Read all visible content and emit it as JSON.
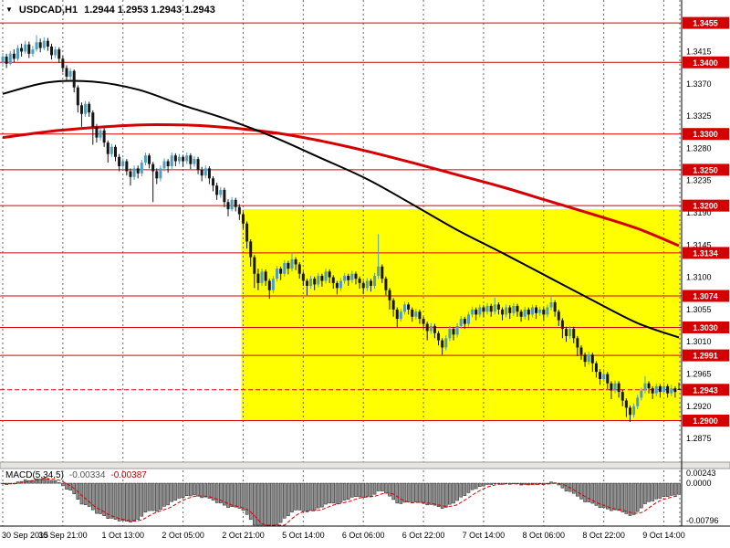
{
  "window": {
    "title_symbol": "USDCAD,H1",
    "title_quote": "1.2944 1.2953 1.2943 1.2943"
  },
  "colors": {
    "bull": "#4f9ebe",
    "bear": "#161616",
    "level": "#d40000",
    "ma_black": "#000000",
    "ma_red": "#d40000",
    "grid": "#666666",
    "macd_fill": "#8f8f8f",
    "macd_stroke": "#333333",
    "signal": "#d40000",
    "zone": "#ffff00",
    "badge_text": "#ffffff"
  },
  "chart_data": {
    "type": "candlestick",
    "symbol": "USDCAD",
    "timeframe": "H1",
    "x_labels": [
      "30 Sep 2015",
      "30 Sep 21:00",
      "1 Oct 13:00",
      "2 Oct 05:00",
      "2 Oct 21:00",
      "5 Oct 14:00",
      "6 Oct 06:00",
      "6 Oct 22:00",
      "7 Oct 14:00",
      "8 Oct 06:00",
      "8 Oct 22:00",
      "9 Oct 14:00"
    ],
    "candles_per_label": 16,
    "y_axis": {
      "ticks": [
        "1.3415",
        "1.3370",
        "1.3325",
        "1.3280",
        "1.3235",
        "1.3190",
        "1.3145",
        "1.3100",
        "1.3055",
        "1.3010",
        "1.2965",
        "1.2920",
        "1.2875"
      ],
      "ylim_top": 1.3487,
      "ylim_bottom": 1.2842
    },
    "levels": [
      1.3455,
      1.34,
      1.33,
      1.325,
      1.32,
      1.3134,
      1.3074,
      1.303,
      1.2991,
      1.29
    ],
    "current_price": 1.2943,
    "highlight_zone": {
      "price_top": 1.3195,
      "price_bottom": 1.29,
      "start_index": 64
    },
    "ma_black": [
      [
        0,
        1.3356
      ],
      [
        12,
        1.3372
      ],
      [
        24,
        1.3373
      ],
      [
        36,
        1.3362
      ],
      [
        48,
        1.334
      ],
      [
        60,
        1.332
      ],
      [
        72,
        1.3296
      ],
      [
        84,
        1.3268
      ],
      [
        97,
        1.3237
      ],
      [
        109,
        1.3202
      ],
      [
        121,
        1.3166
      ],
      [
        133,
        1.3134
      ],
      [
        145,
        1.3101
      ],
      [
        157,
        1.3068
      ],
      [
        169,
        1.3036
      ],
      [
        180,
        1.3016
      ]
    ],
    "ma_red": [
      [
        0,
        1.3295
      ],
      [
        15,
        1.3305
      ],
      [
        30,
        1.3311
      ],
      [
        41,
        1.3313
      ],
      [
        55,
        1.3311
      ],
      [
        72,
        1.3302
      ],
      [
        85,
        1.329
      ],
      [
        97,
        1.3276
      ],
      [
        109,
        1.326
      ],
      [
        121,
        1.3243
      ],
      [
        133,
        1.3226
      ],
      [
        145,
        1.3207
      ],
      [
        157,
        1.3188
      ],
      [
        169,
        1.3168
      ],
      [
        180,
        1.3144
      ]
    ],
    "indicator": {
      "label": "MACD(5,34,5)",
      "value_main": "-0.00334",
      "value_signal": "-0.00387",
      "params": {
        "fast": 5,
        "slow": 34,
        "signal": 5
      },
      "axis": {
        "top_label": "0.00243",
        "zero_label": "0.0000",
        "bottom_label": "-0.00796",
        "ymax": 0.0028,
        "ymin": -0.0085
      }
    },
    "candles": [
      [
        1.34,
        1.3413,
        1.3394,
        1.3408
      ],
      [
        1.3408,
        1.3412,
        1.3392,
        1.3398
      ],
      [
        1.3398,
        1.3416,
        1.3396,
        1.3412
      ],
      [
        1.3412,
        1.3418,
        1.34,
        1.3405
      ],
      [
        1.3405,
        1.3424,
        1.3402,
        1.342
      ],
      [
        1.342,
        1.3426,
        1.3408,
        1.3415
      ],
      [
        1.3415,
        1.343,
        1.3412,
        1.3425
      ],
      [
        1.3425,
        1.3429,
        1.3406,
        1.3412
      ],
      [
        1.3412,
        1.3423,
        1.3408,
        1.3418
      ],
      [
        1.3418,
        1.3438,
        1.3415,
        1.3428
      ],
      [
        1.3428,
        1.3433,
        1.3414,
        1.342
      ],
      [
        1.342,
        1.3435,
        1.3417,
        1.343
      ],
      [
        1.343,
        1.3434,
        1.3416,
        1.3422
      ],
      [
        1.3422,
        1.3426,
        1.3404,
        1.341
      ],
      [
        1.341,
        1.3422,
        1.3406,
        1.3418
      ],
      [
        1.3418,
        1.3421,
        1.3399,
        1.3405
      ],
      [
        1.3405,
        1.3409,
        1.3386,
        1.3392
      ],
      [
        1.3392,
        1.3396,
        1.3373,
        1.338
      ],
      [
        1.338,
        1.3392,
        1.3376,
        1.3388
      ],
      [
        1.3388,
        1.339,
        1.3358,
        1.3365
      ],
      [
        1.3365,
        1.3368,
        1.333,
        1.334
      ],
      [
        1.334,
        1.3344,
        1.331,
        1.3328
      ],
      [
        1.3328,
        1.3346,
        1.3324,
        1.3342
      ],
      [
        1.3342,
        1.3345,
        1.3324,
        1.333
      ],
      [
        1.333,
        1.3333,
        1.3285,
        1.331
      ],
      [
        1.331,
        1.3314,
        1.3288,
        1.3295
      ],
      [
        1.3295,
        1.3309,
        1.3291,
        1.3305
      ],
      [
        1.3305,
        1.3308,
        1.3282,
        1.3288
      ],
      [
        1.3288,
        1.3291,
        1.326,
        1.3272
      ],
      [
        1.3272,
        1.3286,
        1.3268,
        1.3282
      ],
      [
        1.3282,
        1.3285,
        1.3262,
        1.3268
      ],
      [
        1.3268,
        1.3272,
        1.3248,
        1.3255
      ],
      [
        1.3255,
        1.3266,
        1.325,
        1.3262
      ],
      [
        1.3262,
        1.3265,
        1.3242,
        1.3248
      ],
      [
        1.3248,
        1.3252,
        1.3228,
        1.324
      ],
      [
        1.324,
        1.3256,
        1.3236,
        1.3252
      ],
      [
        1.3252,
        1.3256,
        1.3238,
        1.3245
      ],
      [
        1.3245,
        1.3264,
        1.3241,
        1.326
      ],
      [
        1.326,
        1.3274,
        1.3256,
        1.327
      ],
      [
        1.327,
        1.3273,
        1.3252,
        1.3258
      ],
      [
        1.3258,
        1.3261,
        1.3205,
        1.3248
      ],
      [
        1.3248,
        1.3252,
        1.323,
        1.3238
      ],
      [
        1.3238,
        1.3256,
        1.3234,
        1.3252
      ],
      [
        1.3252,
        1.3266,
        1.3248,
        1.3262
      ],
      [
        1.3262,
        1.3265,
        1.3246,
        1.3255
      ],
      [
        1.3255,
        1.3274,
        1.3251,
        1.327
      ],
      [
        1.327,
        1.3273,
        1.3255,
        1.3262
      ],
      [
        1.3262,
        1.3272,
        1.3258,
        1.3268
      ],
      [
        1.3268,
        1.3271,
        1.3254,
        1.3262
      ],
      [
        1.3262,
        1.3274,
        1.3258,
        1.327
      ],
      [
        1.327,
        1.3273,
        1.3251,
        1.3258
      ],
      [
        1.3258,
        1.3269,
        1.3254,
        1.3265
      ],
      [
        1.3265,
        1.3268,
        1.3244,
        1.325
      ],
      [
        1.325,
        1.3254,
        1.3234,
        1.3242
      ],
      [
        1.3242,
        1.3256,
        1.3238,
        1.3252
      ],
      [
        1.3252,
        1.3255,
        1.323,
        1.3238
      ],
      [
        1.3238,
        1.3241,
        1.322,
        1.3228
      ],
      [
        1.3228,
        1.3232,
        1.3208,
        1.3215
      ],
      [
        1.3215,
        1.3226,
        1.3211,
        1.3222
      ],
      [
        1.3222,
        1.3225,
        1.3198,
        1.3205
      ],
      [
        1.3205,
        1.3209,
        1.3185,
        1.3195
      ],
      [
        1.3195,
        1.3212,
        1.3192,
        1.3208
      ],
      [
        1.3208,
        1.3211,
        1.3192,
        1.3198
      ],
      [
        1.3198,
        1.3202,
        1.318,
        1.3188
      ],
      [
        1.3188,
        1.3191,
        1.3168,
        1.3175
      ],
      [
        1.3175,
        1.3178,
        1.314,
        1.315
      ],
      [
        1.315,
        1.3153,
        1.3115,
        1.3128
      ],
      [
        1.3128,
        1.3131,
        1.3085,
        1.3105
      ],
      [
        1.3105,
        1.3112,
        1.3082,
        1.3092
      ],
      [
        1.3092,
        1.3112,
        1.3088,
        1.3108
      ],
      [
        1.3108,
        1.3111,
        1.3088,
        1.3095
      ],
      [
        1.3095,
        1.3098,
        1.307,
        1.3082
      ],
      [
        1.3082,
        1.3102,
        1.3078,
        1.3098
      ],
      [
        1.3098,
        1.3116,
        1.3094,
        1.3112
      ],
      [
        1.3112,
        1.3115,
        1.3096,
        1.3105
      ],
      [
        1.3105,
        1.3124,
        1.3101,
        1.312
      ],
      [
        1.312,
        1.3123,
        1.3104,
        1.3112
      ],
      [
        1.3112,
        1.3135,
        1.3108,
        1.3125
      ],
      [
        1.3125,
        1.3128,
        1.311,
        1.3118
      ],
      [
        1.3118,
        1.3121,
        1.3098,
        1.3105
      ],
      [
        1.3105,
        1.3108,
        1.3088,
        1.3095
      ],
      [
        1.3095,
        1.3098,
        1.3075,
        1.3088
      ],
      [
        1.3088,
        1.3102,
        1.3084,
        1.3098
      ],
      [
        1.3098,
        1.3101,
        1.3082,
        1.309
      ],
      [
        1.309,
        1.3106,
        1.3086,
        1.3102
      ],
      [
        1.3102,
        1.3105,
        1.3087,
        1.3095
      ],
      [
        1.3095,
        1.3112,
        1.3091,
        1.3108
      ],
      [
        1.3108,
        1.3111,
        1.3092,
        1.31
      ],
      [
        1.31,
        1.3103,
        1.3084,
        1.3092
      ],
      [
        1.3092,
        1.3095,
        1.3076,
        1.3085
      ],
      [
        1.3085,
        1.3099,
        1.3081,
        1.3095
      ],
      [
        1.3095,
        1.3106,
        1.3091,
        1.3102
      ],
      [
        1.3102,
        1.3105,
        1.3088,
        1.3096
      ],
      [
        1.3096,
        1.3109,
        1.3092,
        1.3105
      ],
      [
        1.3105,
        1.3108,
        1.309,
        1.3098
      ],
      [
        1.3098,
        1.3101,
        1.3084,
        1.3092
      ],
      [
        1.3092,
        1.3095,
        1.3077,
        1.3085
      ],
      [
        1.3085,
        1.3099,
        1.3081,
        1.3095
      ],
      [
        1.3095,
        1.3098,
        1.308,
        1.3088
      ],
      [
        1.3088,
        1.3106,
        1.3084,
        1.3102
      ],
      [
        1.3102,
        1.316,
        1.3098,
        1.3115
      ],
      [
        1.3115,
        1.3118,
        1.3092,
        1.3098
      ],
      [
        1.3098,
        1.3101,
        1.3075,
        1.3082
      ],
      [
        1.3082,
        1.3085,
        1.3055,
        1.3068
      ],
      [
        1.3068,
        1.3071,
        1.3045,
        1.3055
      ],
      [
        1.3055,
        1.3058,
        1.303,
        1.3042
      ],
      [
        1.3042,
        1.3056,
        1.3038,
        1.3052
      ],
      [
        1.3052,
        1.3066,
        1.3048,
        1.3062
      ],
      [
        1.3062,
        1.3065,
        1.3048,
        1.3055
      ],
      [
        1.3055,
        1.3058,
        1.3038,
        1.3045
      ],
      [
        1.3045,
        1.3056,
        1.3041,
        1.3052
      ],
      [
        1.3052,
        1.3055,
        1.3035,
        1.3042
      ],
      [
        1.3042,
        1.3045,
        1.3028,
        1.3035
      ],
      [
        1.3035,
        1.3038,
        1.3012,
        1.3025
      ],
      [
        1.3025,
        1.3036,
        1.3021,
        1.3032
      ],
      [
        1.3032,
        1.3035,
        1.3015,
        1.3022
      ],
      [
        1.3022,
        1.3025,
        1.3005,
        1.3012
      ],
      [
        1.3012,
        1.3015,
        1.2992,
        1.3002
      ],
      [
        1.3002,
        1.3019,
        1.2998,
        1.3015
      ],
      [
        1.3015,
        1.3032,
        1.3011,
        1.3028
      ],
      [
        1.3028,
        1.3031,
        1.3012,
        1.302
      ],
      [
        1.302,
        1.3036,
        1.3016,
        1.3032
      ],
      [
        1.3032,
        1.3046,
        1.3028,
        1.3042
      ],
      [
        1.3042,
        1.3045,
        1.3028,
        1.3035
      ],
      [
        1.3035,
        1.3052,
        1.3031,
        1.3048
      ],
      [
        1.3048,
        1.3059,
        1.3044,
        1.3055
      ],
      [
        1.3055,
        1.3058,
        1.304,
        1.3048
      ],
      [
        1.3048,
        1.3062,
        1.3044,
        1.3058
      ],
      [
        1.3058,
        1.3061,
        1.3044,
        1.3052
      ],
      [
        1.3052,
        1.3064,
        1.3048,
        1.306
      ],
      [
        1.306,
        1.3063,
        1.3045,
        1.3052
      ],
      [
        1.3052,
        1.3072,
        1.3048,
        1.3062
      ],
      [
        1.3062,
        1.3065,
        1.3048,
        1.3055
      ],
      [
        1.3055,
        1.3058,
        1.304,
        1.3048
      ],
      [
        1.3048,
        1.3062,
        1.3044,
        1.3058
      ],
      [
        1.3058,
        1.3061,
        1.3042,
        1.305
      ],
      [
        1.305,
        1.3064,
        1.3046,
        1.306
      ],
      [
        1.306,
        1.3063,
        1.3045,
        1.3052
      ],
      [
        1.3052,
        1.3055,
        1.3038,
        1.3045
      ],
      [
        1.3045,
        1.3059,
        1.3041,
        1.3055
      ],
      [
        1.3055,
        1.3058,
        1.304,
        1.3048
      ],
      [
        1.3048,
        1.3062,
        1.3044,
        1.3058
      ],
      [
        1.3058,
        1.3061,
        1.3042,
        1.305
      ],
      [
        1.305,
        1.3059,
        1.3046,
        1.3055
      ],
      [
        1.3055,
        1.3058,
        1.304,
        1.3048
      ],
      [
        1.3048,
        1.3062,
        1.3044,
        1.3058
      ],
      [
        1.3058,
        1.3075,
        1.3054,
        1.3065
      ],
      [
        1.3065,
        1.3068,
        1.3045,
        1.3052
      ],
      [
        1.3052,
        1.3055,
        1.3032,
        1.304
      ],
      [
        1.304,
        1.3043,
        1.3015,
        1.3028
      ],
      [
        1.3028,
        1.3031,
        1.301,
        1.3018
      ],
      [
        1.3018,
        1.3032,
        1.3014,
        1.3028
      ],
      [
        1.3028,
        1.3031,
        1.3008,
        1.3015
      ],
      [
        1.3015,
        1.3018,
        1.299,
        1.3002
      ],
      [
        1.3002,
        1.3005,
        1.2985,
        1.2992
      ],
      [
        1.2992,
        1.2995,
        1.2975,
        1.2982
      ],
      [
        1.2982,
        1.2996,
        1.2978,
        1.2992
      ],
      [
        1.2992,
        1.2995,
        1.2968,
        1.298
      ],
      [
        1.298,
        1.2983,
        1.296,
        1.2968
      ],
      [
        1.2968,
        1.2972,
        1.295,
        1.2958
      ],
      [
        1.2958,
        1.2972,
        1.2954,
        1.2965
      ],
      [
        1.2965,
        1.2968,
        1.2944,
        1.2952
      ],
      [
        1.2952,
        1.2955,
        1.293,
        1.2942
      ],
      [
        1.2942,
        1.2956,
        1.2938,
        1.2952
      ],
      [
        1.2952,
        1.2955,
        1.2932,
        1.294
      ],
      [
        1.294,
        1.2943,
        1.292,
        1.2928
      ],
      [
        1.2928,
        1.2931,
        1.2905,
        1.2918
      ],
      [
        1.2918,
        1.2921,
        1.2898,
        1.2908
      ],
      [
        1.2908,
        1.2924,
        1.2904,
        1.292
      ],
      [
        1.292,
        1.2936,
        1.2916,
        1.2932
      ],
      [
        1.2932,
        1.2946,
        1.2928,
        1.2942
      ],
      [
        1.2942,
        1.2962,
        1.2938,
        1.2952
      ],
      [
        1.2952,
        1.2955,
        1.2938,
        1.2945
      ],
      [
        1.2945,
        1.2948,
        1.293,
        1.2938
      ],
      [
        1.2938,
        1.2952,
        1.2934,
        1.2948
      ],
      [
        1.2948,
        1.2951,
        1.2932,
        1.294
      ],
      [
        1.294,
        1.2954,
        1.2936,
        1.2948
      ],
      [
        1.2948,
        1.2951,
        1.2932,
        1.2938
      ],
      [
        1.2938,
        1.295,
        1.2934,
        1.2945
      ],
      [
        1.2945,
        1.2948,
        1.2932,
        1.294
      ],
      [
        1.2944,
        1.2953,
        1.2943,
        1.2943
      ]
    ]
  }
}
